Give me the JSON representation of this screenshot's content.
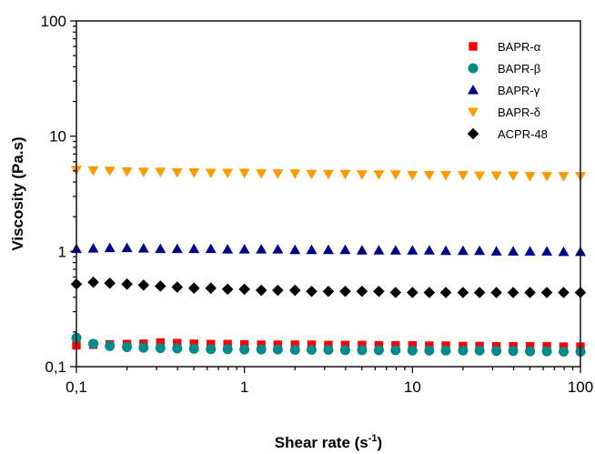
{
  "chart_data": {
    "type": "scatter",
    "xlabel": "Shear rate (s",
    "xlabel_sup": "-1",
    "xlabel_end": ")",
    "ylabel": "Viscosity (Pa.s)",
    "x_scale": "log",
    "y_scale": "log",
    "xlim": [
      0.1,
      100
    ],
    "ylim": [
      0.1,
      100
    ],
    "x_ticks": [
      0.1,
      1,
      10,
      100
    ],
    "x_tick_labels": [
      "0,1",
      "1",
      "10",
      "100"
    ],
    "y_ticks": [
      0.1,
      1,
      10,
      100
    ],
    "y_tick_labels": [
      "0,1",
      "1",
      "10",
      "100"
    ],
    "grid": false,
    "legend_position": "top-right",
    "x": [
      0.1,
      0.126,
      0.158,
      0.2,
      0.251,
      0.316,
      0.398,
      0.501,
      0.631,
      0.794,
      1,
      1.26,
      1.58,
      2,
      2.51,
      3.16,
      3.98,
      5.01,
      6.31,
      7.94,
      10,
      12.6,
      15.8,
      20,
      25.1,
      31.6,
      39.8,
      50.1,
      63.1,
      79.4,
      100
    ],
    "series": [
      {
        "name": "BAPR-α",
        "marker": "square",
        "color": "#ff0000",
        "values": [
          0.153,
          0.155,
          0.156,
          0.157,
          0.158,
          0.162,
          0.16,
          0.158,
          0.157,
          0.157,
          0.156,
          0.155,
          0.155,
          0.155,
          0.155,
          0.154,
          0.154,
          0.154,
          0.153,
          0.153,
          0.153,
          0.152,
          0.152,
          0.151,
          0.151,
          0.15,
          0.15,
          0.15,
          0.15,
          0.149,
          0.149
        ]
      },
      {
        "name": "BAPR-β",
        "marker": "circle",
        "color": "#008b8b",
        "values": [
          0.178,
          0.158,
          0.151,
          0.148,
          0.146,
          0.145,
          0.144,
          0.143,
          0.142,
          0.142,
          0.141,
          0.141,
          0.141,
          0.14,
          0.14,
          0.14,
          0.139,
          0.139,
          0.139,
          0.139,
          0.138,
          0.138,
          0.138,
          0.138,
          0.138,
          0.137,
          0.137,
          0.136,
          0.136,
          0.135,
          0.135
        ]
      },
      {
        "name": "BAPR-γ",
        "marker": "triangle-up",
        "color": "#00008b",
        "values": [
          1.05,
          1.06,
          1.07,
          1.07,
          1.06,
          1.05,
          1.05,
          1.05,
          1.05,
          1.04,
          1.04,
          1.04,
          1.04,
          1.03,
          1.03,
          1.03,
          1.03,
          1.02,
          1.02,
          1.02,
          1.02,
          1.02,
          1.01,
          1.01,
          1.01,
          1.0,
          1.0,
          1.0,
          1.0,
          0.99,
          0.99
        ]
      },
      {
        "name": "BAPR-δ",
        "marker": "triangle-down",
        "color": "#ff9900",
        "values": [
          5.1,
          5.05,
          5.0,
          4.95,
          4.9,
          4.9,
          4.85,
          4.85,
          4.8,
          4.8,
          4.8,
          4.75,
          4.75,
          4.75,
          4.7,
          4.7,
          4.7,
          4.65,
          4.65,
          4.65,
          4.6,
          4.6,
          4.6,
          4.6,
          4.55,
          4.55,
          4.55,
          4.5,
          4.5,
          4.5,
          4.5
        ]
      },
      {
        "name": "ACPR-48",
        "marker": "diamond",
        "color": "#000000",
        "values": [
          0.52,
          0.54,
          0.53,
          0.52,
          0.51,
          0.5,
          0.49,
          0.48,
          0.48,
          0.47,
          0.47,
          0.46,
          0.46,
          0.46,
          0.45,
          0.45,
          0.45,
          0.45,
          0.45,
          0.44,
          0.44,
          0.44,
          0.44,
          0.44,
          0.44,
          0.44,
          0.44,
          0.44,
          0.44,
          0.44,
          0.44
        ]
      }
    ]
  }
}
